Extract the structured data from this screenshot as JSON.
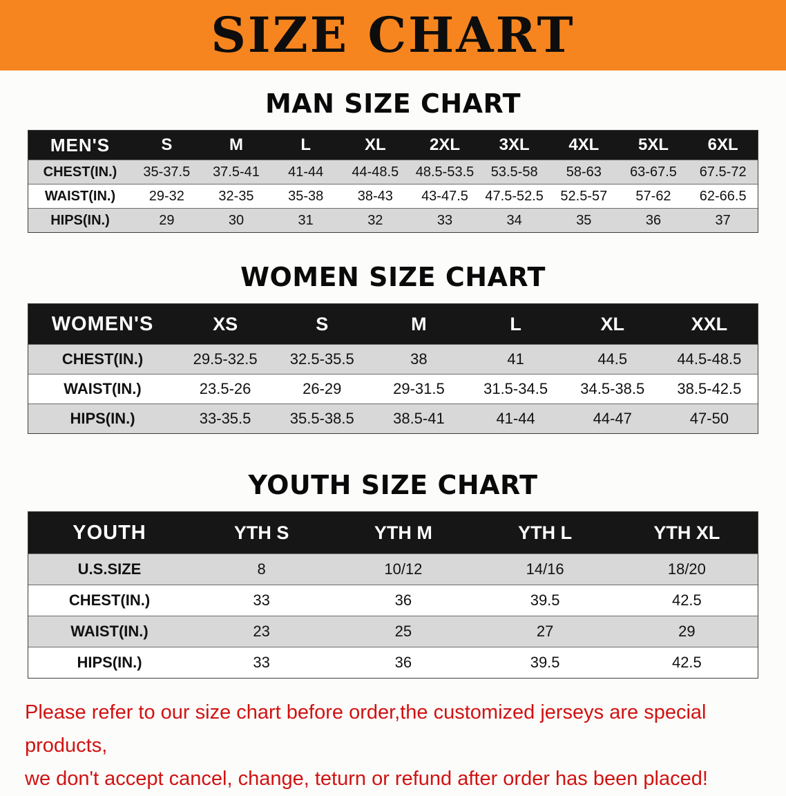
{
  "banner": {
    "title": "SIZE CHART"
  },
  "colors": {
    "banner_bg": "#f6851f",
    "table_header_bg": "#161616",
    "row_alt_bg": "#d8d8d8",
    "note_text": "#d01212"
  },
  "men": {
    "heading": "MAN SIZE CHART",
    "table": {
      "header_label": "MEN'S",
      "columns": [
        "S",
        "M",
        "L",
        "XL",
        "2XL",
        "3XL",
        "4XL",
        "5XL",
        "6XL"
      ],
      "rows": [
        {
          "label": "CHEST(IN.)",
          "values": [
            "35-37.5",
            "37.5-41",
            "41-44",
            "44-48.5",
            "48.5-53.5",
            "53.5-58",
            "58-63",
            "63-67.5",
            "67.5-72"
          ]
        },
        {
          "label": "WAIST(IN.)",
          "values": [
            "29-32",
            "32-35",
            "35-38",
            "38-43",
            "43-47.5",
            "47.5-52.5",
            "52.5-57",
            "57-62",
            "62-66.5"
          ]
        },
        {
          "label": "HIPS(IN.)",
          "values": [
            "29",
            "30",
            "31",
            "32",
            "33",
            "34",
            "35",
            "36",
            "37"
          ]
        }
      ]
    }
  },
  "women": {
    "heading": "WOMEN SIZE CHART",
    "table": {
      "header_label": "WOMEN'S",
      "columns": [
        "XS",
        "S",
        "M",
        "L",
        "XL",
        "XXL"
      ],
      "rows": [
        {
          "label": "CHEST(IN.)",
          "values": [
            "29.5-32.5",
            "32.5-35.5",
            "38",
            "41",
            "44.5",
            "44.5-48.5"
          ]
        },
        {
          "label": "WAIST(IN.)",
          "values": [
            "23.5-26",
            "26-29",
            "29-31.5",
            "31.5-34.5",
            "34.5-38.5",
            "38.5-42.5"
          ]
        },
        {
          "label": "HIPS(IN.)",
          "values": [
            "33-35.5",
            "35.5-38.5",
            "38.5-41",
            "41-44",
            "44-47",
            "47-50"
          ]
        }
      ]
    }
  },
  "youth": {
    "heading": "YOUTH SIZE CHART",
    "table": {
      "header_label": "YOUTH",
      "columns": [
        "YTH S",
        "YTH M",
        "YTH L",
        "YTH XL"
      ],
      "rows": [
        {
          "label": "U.S.SIZE",
          "values": [
            "8",
            "10/12",
            "14/16",
            "18/20"
          ]
        },
        {
          "label": "CHEST(IN.)",
          "values": [
            "33",
            "36",
            "39.5",
            "42.5"
          ]
        },
        {
          "label": "WAIST(IN.)",
          "values": [
            "23",
            "25",
            "27",
            "29"
          ]
        },
        {
          "label": "HIPS(IN.)",
          "values": [
            "33",
            "36",
            "39.5",
            "42.5"
          ]
        }
      ]
    }
  },
  "note": {
    "line1": "Please refer to our size chart before order,the customized jerseys are special products,",
    "line2": "we don't accept cancel, change, teturn or refund after order has been placed!"
  }
}
